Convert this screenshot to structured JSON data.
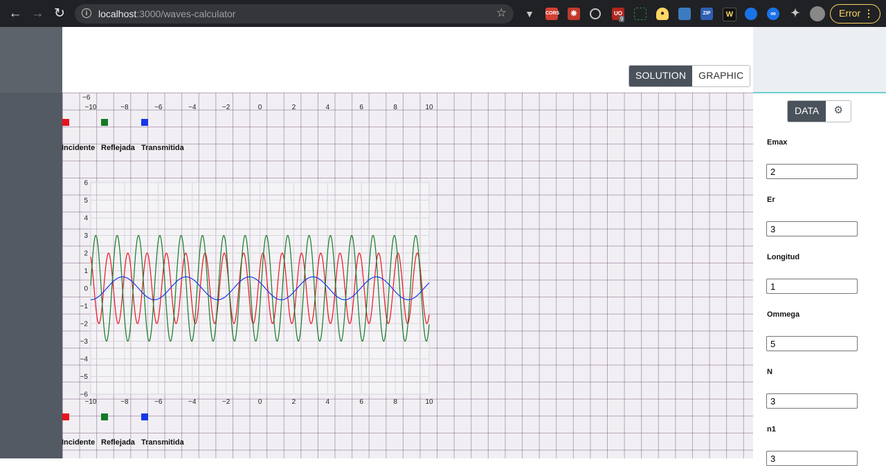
{
  "browser": {
    "url_host": "localhost",
    "url_path": ":3000/waves-calculator",
    "ext_badge_count": "9",
    "ext_cors_label": "CORS",
    "ext_zip_label": "ZIP",
    "ext_w_label": "W",
    "error_label": "Error"
  },
  "toggle": {
    "solution_label": "SOLUTION",
    "graphic_label": "GRAPHIC"
  },
  "panel": {
    "data_tab_label": "DATA",
    "fields": [
      {
        "label": "Emax",
        "value": "2"
      },
      {
        "label": "Er",
        "value": "3"
      },
      {
        "label": "Longitud",
        "value": "1"
      },
      {
        "label": "Ommega",
        "value": "5"
      },
      {
        "label": "N",
        "value": "3"
      },
      {
        "label": "n1",
        "value": "3"
      }
    ]
  },
  "legend": [
    {
      "name": "Incidente",
      "color": "#e8141d"
    },
    {
      "name": "Reflejada",
      "color": "#137a26"
    },
    {
      "name": "Transmitida",
      "color": "#1638e6"
    }
  ],
  "chart_data": {
    "type": "line",
    "xlim": [
      -10,
      10
    ],
    "ylim": [
      -6,
      6
    ],
    "x_ticks": [
      "−10",
      "−8",
      "−6",
      "−4",
      "−2",
      "0",
      "2",
      "4",
      "6",
      "8",
      "10"
    ],
    "y_ticks": [
      "6",
      "5",
      "4",
      "3",
      "2",
      "1",
      "0",
      "−1",
      "−2",
      "−3",
      "−4",
      "−5",
      "−6"
    ],
    "series": [
      {
        "name": "Incidente",
        "color": "#e8141d",
        "amplitude": 2,
        "period": 1.14,
        "phase": 0.6
      },
      {
        "name": "Reflejada",
        "color": "#137a26",
        "amplitude": 3,
        "period": 1.26,
        "phase": -0.35
      },
      {
        "name": "Transmitida",
        "color": "#1638e6",
        "amplitude": 0.65,
        "period": 3.75,
        "phase": 2.6
      }
    ]
  }
}
